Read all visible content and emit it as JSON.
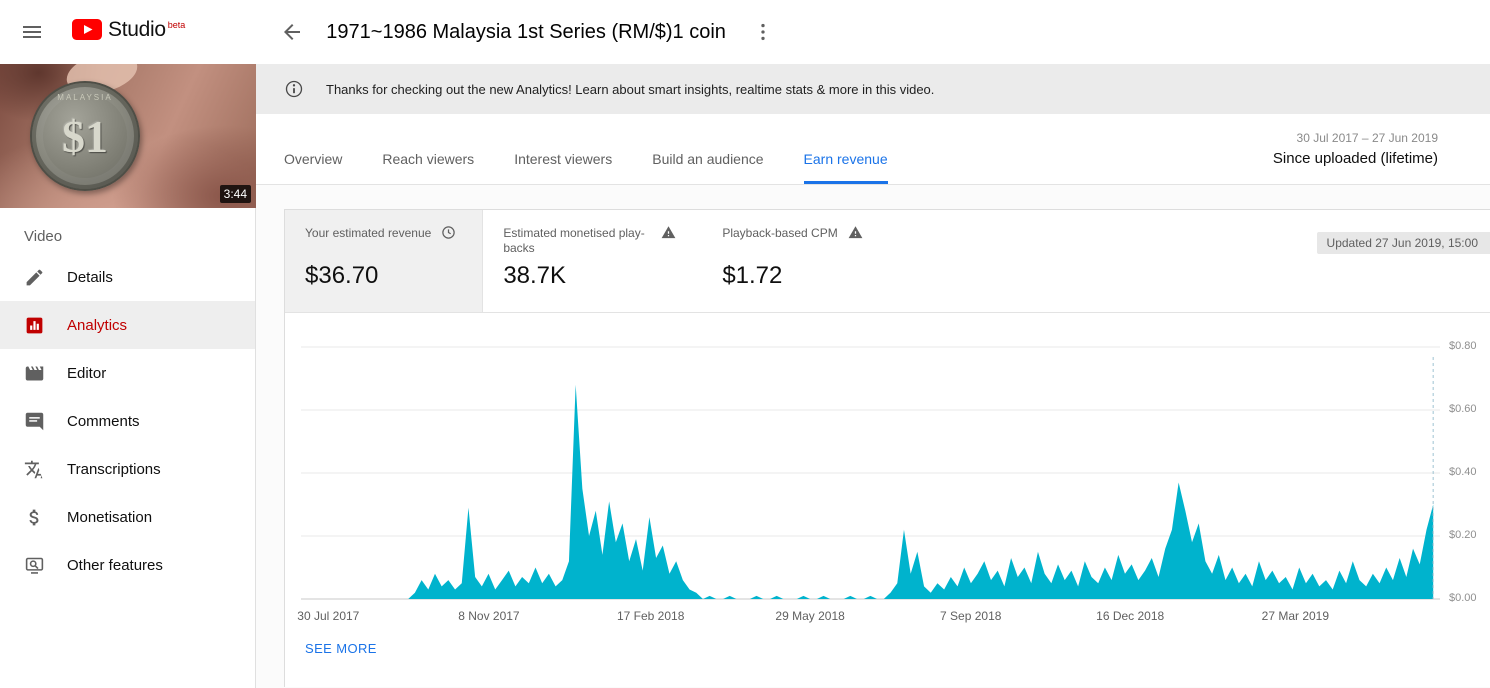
{
  "header": {
    "app_name": "Studio",
    "beta_tag": "beta",
    "video_title": "1971~1986 Malaysia 1st Series (RM/$)1 coin"
  },
  "sidebar": {
    "thumbnail": {
      "duration": "3:44",
      "coin_text": "$1",
      "coin_ring_text": "MALAYSIA"
    },
    "section_label": "Video",
    "items": [
      {
        "label": "Details",
        "icon": "pencil-icon",
        "active": false
      },
      {
        "label": "Analytics",
        "icon": "analytics-icon",
        "active": true
      },
      {
        "label": "Editor",
        "icon": "editor-icon",
        "active": false
      },
      {
        "label": "Comments",
        "icon": "comments-icon",
        "active": false
      },
      {
        "label": "Transcriptions",
        "icon": "translate-icon",
        "active": false
      },
      {
        "label": "Monetisation",
        "icon": "dollar-icon",
        "active": false
      },
      {
        "label": "Other features",
        "icon": "other-features-icon",
        "active": false
      }
    ]
  },
  "banner": {
    "text": "Thanks for checking out the new Analytics! Learn about smart insights, realtime stats & more in this video."
  },
  "tabs": [
    {
      "label": "Overview",
      "active": false
    },
    {
      "label": "Reach viewers",
      "active": false
    },
    {
      "label": "Interest viewers",
      "active": false
    },
    {
      "label": "Build an audience",
      "active": false
    },
    {
      "label": "Earn revenue",
      "active": true
    }
  ],
  "date_range": {
    "range": "30 Jul 2017 – 27 Jun 2019",
    "preset": "Since uploaded (lifetime)"
  },
  "metrics": {
    "updated": "Updated 27 Jun 2019, 15:00",
    "cards": [
      {
        "label": "Your estimated revenue",
        "value": "$36.70",
        "icon": "clock-icon",
        "selected": true
      },
      {
        "label": "Estimated monetised play-backs",
        "value": "38.7K",
        "icon": "warning-icon",
        "selected": false
      },
      {
        "label": "Playback-based CPM",
        "value": "$1.72",
        "icon": "warning-icon",
        "selected": false
      }
    ]
  },
  "see_more": {
    "label": "SEE MORE"
  },
  "colors": {
    "brand_red": "#ff0000",
    "active_red": "#c00000",
    "tab_blue": "#1a73e8",
    "chart_cyan": "#00b3cd"
  },
  "chart_data": {
    "type": "area",
    "series_name": "Your estimated revenue",
    "unit": "USD",
    "x_range": [
      "30 Jul 2017",
      "27 Jun 2019"
    ],
    "ylim": [
      0,
      0.8
    ],
    "grid": true,
    "legend": "none",
    "series_color": "#00b3cd",
    "y_ticks": [
      {
        "label": "$0.80",
        "value": 0.8
      },
      {
        "label": "$0.60",
        "value": 0.6
      },
      {
        "label": "$0.40",
        "value": 0.4
      },
      {
        "label": "$0.20",
        "value": 0.2
      },
      {
        "label": "$0.00",
        "value": 0.0
      }
    ],
    "x_ticks": [
      {
        "label": "30 Jul 2017",
        "pos": 0.024
      },
      {
        "label": "8 Nov 2017",
        "pos": 0.165
      },
      {
        "label": "17 Feb 2018",
        "pos": 0.307
      },
      {
        "label": "29 May 2018",
        "pos": 0.447
      },
      {
        "label": "7 Sep 2018",
        "pos": 0.588
      },
      {
        "label": "16 Dec 2018",
        "pos": 0.728
      },
      {
        "label": "27 Mar 2019",
        "pos": 0.873
      }
    ],
    "values": [
      0,
      0,
      0,
      0,
      0,
      0,
      0,
      0,
      0,
      0,
      0,
      0,
      0,
      0,
      0,
      0,
      0,
      0.02,
      0.06,
      0.03,
      0.08,
      0.04,
      0.06,
      0.03,
      0.05,
      0.29,
      0.07,
      0.04,
      0.08,
      0.03,
      0.06,
      0.09,
      0.04,
      0.07,
      0.05,
      0.1,
      0.05,
      0.08,
      0.04,
      0.06,
      0.12,
      0.68,
      0.35,
      0.2,
      0.28,
      0.14,
      0.31,
      0.18,
      0.24,
      0.12,
      0.19,
      0.09,
      0.26,
      0.13,
      0.17,
      0.08,
      0.12,
      0.06,
      0.03,
      0.02,
      0,
      0.01,
      0,
      0,
      0.01,
      0,
      0,
      0,
      0.01,
      0,
      0,
      0.01,
      0,
      0,
      0,
      0.01,
      0,
      0,
      0.01,
      0,
      0,
      0,
      0.01,
      0,
      0,
      0.01,
      0,
      0,
      0.02,
      0.05,
      0.22,
      0.08,
      0.15,
      0.04,
      0.02,
      0.05,
      0.03,
      0.07,
      0.04,
      0.1,
      0.05,
      0.08,
      0.12,
      0.06,
      0.09,
      0.04,
      0.13,
      0.07,
      0.1,
      0.05,
      0.15,
      0.08,
      0.05,
      0.11,
      0.06,
      0.09,
      0.04,
      0.12,
      0.07,
      0.05,
      0.1,
      0.06,
      0.14,
      0.08,
      0.11,
      0.06,
      0.09,
      0.13,
      0.07,
      0.16,
      0.22,
      0.37,
      0.28,
      0.18,
      0.24,
      0.12,
      0.08,
      0.14,
      0.06,
      0.1,
      0.05,
      0.08,
      0.04,
      0.12,
      0.06,
      0.09,
      0.05,
      0.07,
      0.03,
      0.1,
      0.05,
      0.08,
      0.04,
      0.06,
      0.03,
      0.09,
      0.05,
      0.12,
      0.06,
      0.04,
      0.08,
      0.05,
      0.1,
      0.06,
      0.13,
      0.07,
      0.16,
      0.11,
      0.22,
      0.3
    ]
  }
}
